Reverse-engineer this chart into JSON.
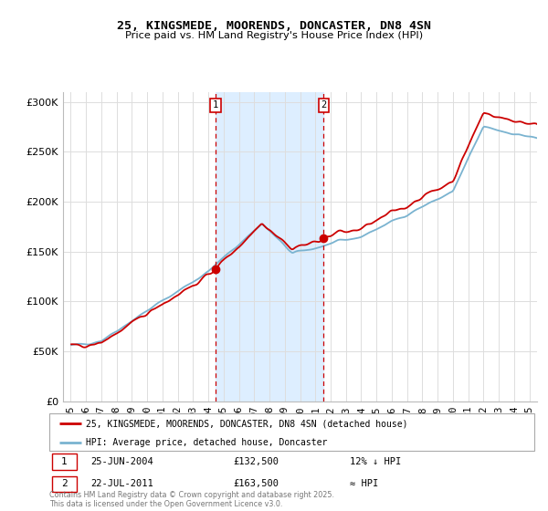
{
  "title": "25, KINGSMEDE, MOORENDS, DONCASTER, DN8 4SN",
  "subtitle": "Price paid vs. HM Land Registry's House Price Index (HPI)",
  "legend_label_red": "25, KINGSMEDE, MOORENDS, DONCASTER, DN8 4SN (detached house)",
  "legend_label_blue": "HPI: Average price, detached house, Doncaster",
  "annotation1_date": "25-JUN-2004",
  "annotation1_price": "£132,500",
  "annotation1_hpi": "12% ↓ HPI",
  "annotation2_date": "22-JUL-2011",
  "annotation2_price": "£163,500",
  "annotation2_hpi": "≈ HPI",
  "footnote": "Contains HM Land Registry data © Crown copyright and database right 2025.\nThis data is licensed under the Open Government Licence v3.0.",
  "marker1_x": 2004.47,
  "marker1_y": 132500,
  "marker2_x": 2011.55,
  "marker2_y": 163500,
  "ylim_min": 0,
  "ylim_max": 310000,
  "xlim_min": 1994.5,
  "xlim_max": 2025.5,
  "background_color": "#ffffff",
  "grid_color": "#dddddd",
  "red_color": "#cc0000",
  "blue_color": "#7ab3d0",
  "shade_color": "#ddeeff",
  "yticks": [
    0,
    50000,
    100000,
    150000,
    200000,
    250000,
    300000
  ],
  "ytick_labels": [
    "£0",
    "£50K",
    "£100K",
    "£150K",
    "£200K",
    "£250K",
    "£300K"
  ],
  "xtick_years": [
    1995,
    1996,
    1997,
    1998,
    1999,
    2000,
    2001,
    2002,
    2003,
    2004,
    2005,
    2006,
    2007,
    2008,
    2009,
    2010,
    2011,
    2012,
    2013,
    2014,
    2015,
    2016,
    2017,
    2018,
    2019,
    2020,
    2021,
    2022,
    2023,
    2024,
    2025
  ]
}
